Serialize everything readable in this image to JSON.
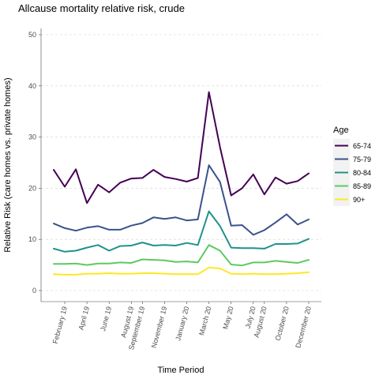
{
  "chart_data": {
    "type": "line",
    "title": "Allcause mortality relative risk, crude",
    "xlabel": "Time Period",
    "ylabel": "Relative Risk (care homes vs. private homes)",
    "ylim": [
      0,
      50
    ],
    "yticks": [
      "0",
      "10",
      "20",
      "30",
      "40",
      "50"
    ],
    "grid": "horizontal dashed",
    "legend": {
      "title": "Age",
      "placement": "right"
    },
    "x": [
      "2019-01",
      "2019-02",
      "2019-03",
      "2019-04",
      "2019-05",
      "2019-06",
      "2019-07",
      "2019-08",
      "2019-09",
      "2019-10",
      "2019-11",
      "2019-12",
      "2020-01",
      "2020-02",
      "2020-03",
      "2020-04",
      "2020-05",
      "2020-06",
      "2020-07",
      "2020-08",
      "2020-09",
      "2020-10",
      "2020-11",
      "2020-12"
    ],
    "xtick_labels": [
      "February 19",
      "April 19",
      "June 19",
      "August 19",
      "September 19",
      "November 19",
      "January 20",
      "March 20",
      "May 20",
      "July 20",
      "August 20",
      "October 20",
      "December 20"
    ],
    "xtick_months": [
      "2019-02",
      "2019-04",
      "2019-06",
      "2019-08",
      "2019-09",
      "2019-11",
      "2020-01",
      "2020-03",
      "2020-05",
      "2020-07",
      "2020-08",
      "2020-10",
      "2020-12"
    ],
    "series": [
      {
        "name": "65-74",
        "color": "#440154",
        "values": [
          23.6,
          20.3,
          23.7,
          17.1,
          20.7,
          19.2,
          21.1,
          21.9,
          22.0,
          23.6,
          22.2,
          21.8,
          21.3,
          22.0,
          38.8,
          28.0,
          18.6,
          20.0,
          22.7,
          18.8,
          22.1,
          20.9,
          21.4,
          22.9
        ]
      },
      {
        "name": "75-79",
        "color": "#3b528b",
        "values": [
          13.1,
          12.2,
          11.7,
          12.3,
          12.6,
          11.9,
          11.9,
          12.7,
          13.2,
          14.3,
          14.0,
          14.3,
          13.7,
          13.9,
          24.5,
          21.2,
          12.7,
          12.8,
          10.9,
          11.8,
          13.3,
          14.9,
          12.9,
          13.9
        ]
      },
      {
        "name": "80-84",
        "color": "#21918c",
        "values": [
          8.2,
          7.6,
          7.8,
          8.4,
          8.9,
          7.8,
          8.7,
          8.8,
          9.4,
          8.8,
          8.9,
          8.8,
          9.3,
          8.9,
          15.5,
          12.6,
          8.4,
          8.3,
          8.3,
          8.2,
          9.1,
          9.1,
          9.2,
          10.1
        ]
      },
      {
        "name": "85-89",
        "color": "#5ec962",
        "values": [
          5.2,
          5.2,
          5.3,
          5.0,
          5.3,
          5.3,
          5.5,
          5.4,
          6.1,
          6.0,
          5.9,
          5.6,
          5.7,
          5.5,
          8.9,
          7.8,
          5.1,
          4.9,
          5.5,
          5.5,
          5.8,
          5.6,
          5.4,
          6.0
        ]
      },
      {
        "name": "90+",
        "color": "#fde725",
        "values": [
          3.2,
          3.1,
          3.1,
          3.3,
          3.3,
          3.4,
          3.3,
          3.3,
          3.4,
          3.4,
          3.3,
          3.2,
          3.2,
          3.2,
          4.5,
          4.3,
          3.3,
          3.2,
          3.3,
          3.2,
          3.2,
          3.3,
          3.4,
          3.6
        ]
      }
    ]
  }
}
